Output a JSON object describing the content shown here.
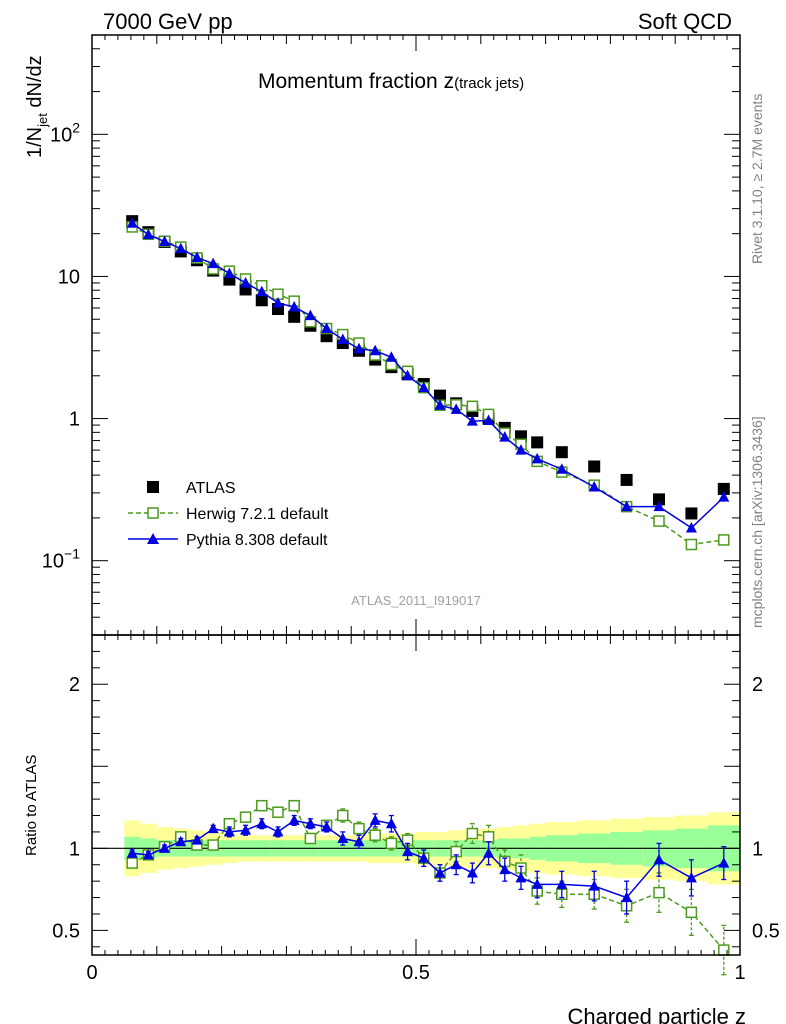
{
  "header": {
    "left": "7000 GeV pp",
    "right": "Soft QCD",
    "side_rivet": "Rivet 3.1.10, ≥ 2.7M events",
    "side_url": "mcplots.cern.ch [arXiv:1306.3436]"
  },
  "chart_data": [
    {
      "type": "scatter",
      "title": "Momentum fraction z(track jets)",
      "title_main": "Momentum fraction z",
      "title_sub": "(track jets)",
      "ylabel": "1/N_jet dN/dz",
      "ylabel_parts": [
        "1/N",
        "jet",
        " dN/dz"
      ],
      "yscale": "log",
      "xlim": [
        0,
        1
      ],
      "ylim": [
        0.03,
        500
      ],
      "watermark": "ATLAS_2011_I919017",
      "y_tick_labels": [
        {
          "value": 0.1,
          "base": "10",
          "exp": "−1"
        },
        {
          "value": 1,
          "base": "1",
          "exp": ""
        },
        {
          "value": 10,
          "base": "10",
          "exp": ""
        },
        {
          "value": 100,
          "base": "10",
          "exp": "2"
        }
      ],
      "legend_position": "lower-left",
      "legend": [
        "ATLAS",
        "Herwig 7.2.1 default",
        "Pythia 8.308 default"
      ],
      "x": [
        0.062,
        0.087,
        0.112,
        0.137,
        0.162,
        0.187,
        0.212,
        0.237,
        0.262,
        0.287,
        0.312,
        0.337,
        0.362,
        0.387,
        0.412,
        0.437,
        0.462,
        0.487,
        0.512,
        0.537,
        0.562,
        0.587,
        0.612,
        0.637,
        0.662,
        0.687,
        0.725,
        0.775,
        0.825,
        0.875,
        0.925,
        0.975
      ],
      "series": [
        {
          "name": "ATLAS",
          "color": "#000000",
          "marker": "filled-square",
          "values": [
            24.5,
            20.5,
            17.5,
            15.0,
            13.0,
            11.0,
            9.5,
            8.1,
            6.8,
            5.9,
            5.2,
            4.5,
            3.8,
            3.4,
            3.0,
            2.6,
            2.3,
            2.05,
            1.75,
            1.45,
            1.28,
            1.13,
            1.0,
            0.86,
            0.75,
            0.68,
            0.58,
            0.46,
            0.37,
            0.27,
            0.215,
            0.32
          ]
        },
        {
          "name": "Herwig 7.2.1 default",
          "color": "#4d9a1e",
          "marker": "open-square",
          "line": "dashed",
          "values": [
            22.3,
            19.8,
            17.7,
            16.1,
            13.5,
            11.3,
            10.9,
            9.6,
            8.6,
            7.5,
            6.7,
            4.8,
            4.3,
            3.9,
            3.4,
            2.8,
            2.4,
            2.15,
            1.65,
            1.24,
            1.25,
            1.22,
            1.07,
            0.79,
            0.66,
            0.5,
            0.42,
            0.34,
            0.24,
            0.19,
            0.13,
            0.14
          ]
        },
        {
          "name": "Pythia 8.308 default",
          "color": "#0000e0",
          "marker": "filled-triangle",
          "line": "solid",
          "values": [
            23.7,
            19.7,
            17.6,
            15.7,
            13.6,
            12.3,
            10.5,
            9.0,
            7.8,
            6.5,
            6.1,
            5.3,
            4.3,
            3.6,
            3.1,
            3.0,
            2.7,
            2.0,
            1.65,
            1.24,
            1.16,
            0.96,
            0.97,
            0.74,
            0.6,
            0.52,
            0.44,
            0.33,
            0.24,
            0.24,
            0.17,
            0.28
          ]
        }
      ]
    },
    {
      "type": "scatter",
      "ylabel": "Ratio to ATLAS",
      "xlabel": "Charged particle z",
      "xlim": [
        0,
        1
      ],
      "ylim": [
        0.35,
        2.3
      ],
      "x_ticks": [
        0,
        0.5,
        1
      ],
      "x_tick_labels": [
        "0",
        "0.5",
        "1"
      ],
      "y_ticks": [
        0.5,
        1,
        2
      ],
      "y_tick_labels": [
        "0.5",
        "1",
        "2"
      ],
      "band_colors": {
        "inner": "#99ff99",
        "outer": "#ffff99"
      },
      "x": [
        0.062,
        0.087,
        0.112,
        0.137,
        0.162,
        0.187,
        0.212,
        0.237,
        0.262,
        0.287,
        0.312,
        0.337,
        0.362,
        0.387,
        0.412,
        0.437,
        0.462,
        0.487,
        0.512,
        0.537,
        0.562,
        0.587,
        0.612,
        0.637,
        0.662,
        0.687,
        0.725,
        0.775,
        0.825,
        0.875,
        0.925,
        0.975
      ],
      "bin_edges": [
        0.05,
        0.075,
        0.1,
        0.125,
        0.15,
        0.175,
        0.2,
        0.225,
        0.25,
        0.275,
        0.3,
        0.325,
        0.35,
        0.375,
        0.4,
        0.425,
        0.45,
        0.475,
        0.5,
        0.525,
        0.55,
        0.575,
        0.6,
        0.625,
        0.65,
        0.675,
        0.7,
        0.75,
        0.8,
        0.85,
        0.9,
        0.95,
        1.0
      ],
      "band_inner": [
        0.07,
        0.06,
        0.05,
        0.05,
        0.05,
        0.05,
        0.05,
        0.05,
        0.05,
        0.05,
        0.05,
        0.05,
        0.05,
        0.05,
        0.05,
        0.05,
        0.05,
        0.05,
        0.05,
        0.05,
        0.05,
        0.05,
        0.05,
        0.06,
        0.06,
        0.07,
        0.08,
        0.09,
        0.1,
        0.11,
        0.12,
        0.14
      ],
      "band_outer": [
        0.17,
        0.15,
        0.13,
        0.12,
        0.11,
        0.1,
        0.09,
        0.08,
        0.08,
        0.08,
        0.08,
        0.08,
        0.08,
        0.08,
        0.08,
        0.09,
        0.09,
        0.09,
        0.1,
        0.1,
        0.11,
        0.12,
        0.12,
        0.13,
        0.14,
        0.15,
        0.16,
        0.17,
        0.18,
        0.19,
        0.2,
        0.22
      ],
      "series": [
        {
          "name": "Herwig 7.2.1 default",
          "color": "#4d9a1e",
          "values": [
            0.91,
            0.96,
            1.01,
            1.07,
            1.02,
            1.02,
            1.15,
            1.19,
            1.26,
            1.22,
            1.26,
            1.06,
            1.14,
            1.2,
            1.12,
            1.08,
            1.03,
            1.05,
            0.94,
            0.85,
            0.98,
            1.09,
            1.07,
            0.92,
            0.88,
            0.74,
            0.72,
            0.72,
            0.65,
            0.73,
            0.61,
            0.38
          ],
          "errors": [
            0.02,
            0.02,
            0.02,
            0.02,
            0.02,
            0.02,
            0.03,
            0.03,
            0.03,
            0.03,
            0.03,
            0.03,
            0.03,
            0.04,
            0.04,
            0.04,
            0.04,
            0.04,
            0.05,
            0.05,
            0.06,
            0.06,
            0.07,
            0.07,
            0.08,
            0.08,
            0.08,
            0.09,
            0.1,
            0.12,
            0.14,
            0.15
          ]
        },
        {
          "name": "Pythia 8.308 default",
          "color": "#0000e0",
          "values": [
            0.97,
            0.96,
            1.0,
            1.04,
            1.05,
            1.12,
            1.1,
            1.11,
            1.15,
            1.1,
            1.17,
            1.15,
            1.13,
            1.06,
            1.04,
            1.17,
            1.15,
            0.98,
            0.94,
            0.85,
            0.9,
            0.85,
            0.97,
            0.87,
            0.82,
            0.78,
            0.78,
            0.77,
            0.7,
            0.93,
            0.82,
            0.91
          ],
          "errors": [
            0.02,
            0.02,
            0.02,
            0.02,
            0.02,
            0.02,
            0.03,
            0.03,
            0.03,
            0.03,
            0.03,
            0.03,
            0.03,
            0.04,
            0.04,
            0.04,
            0.05,
            0.05,
            0.05,
            0.05,
            0.06,
            0.06,
            0.07,
            0.07,
            0.07,
            0.08,
            0.08,
            0.09,
            0.1,
            0.1,
            0.11,
            0.1
          ]
        }
      ]
    }
  ]
}
